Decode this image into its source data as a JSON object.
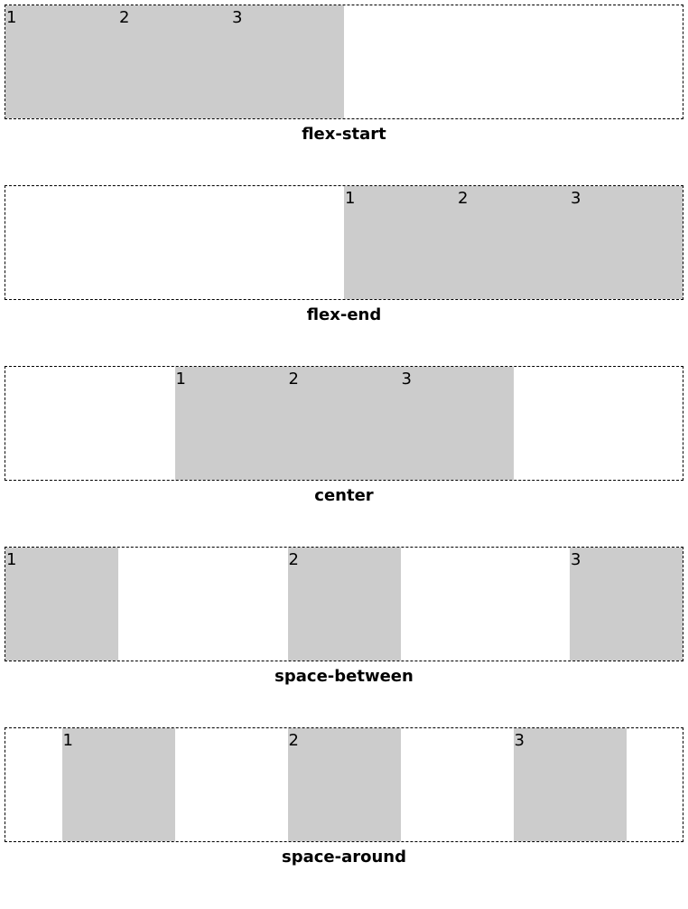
{
  "demos": [
    {
      "caption": "flex-start",
      "items": [
        "1",
        "2",
        "3"
      ]
    },
    {
      "caption": "flex-end",
      "items": [
        "1",
        "2",
        "3"
      ]
    },
    {
      "caption": "center",
      "items": [
        "1",
        "2",
        "3"
      ]
    },
    {
      "caption": "space-between",
      "items": [
        "1",
        "2",
        "3"
      ]
    },
    {
      "caption": "space-around",
      "items": [
        "1",
        "2",
        "3"
      ]
    }
  ],
  "colors": {
    "box_fill": "#cccccc",
    "border": "#000000",
    "background": "#ffffff"
  }
}
